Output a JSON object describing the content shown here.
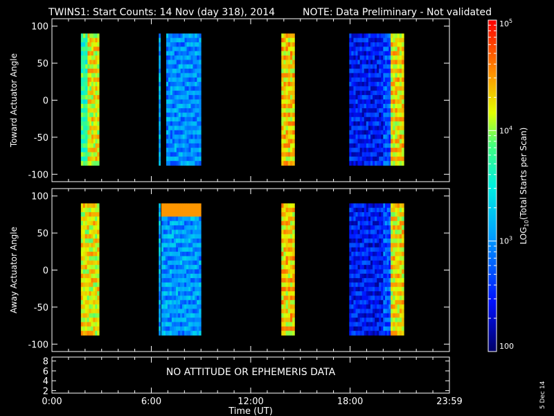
{
  "header": {
    "title": "TWINS1: Start Counts: 14 Nov (day 318), 2014",
    "note": "NOTE: Data Preliminary - Not validated",
    "note_color": "#ff2020"
  },
  "stamp": "5 Dec 14",
  "colors": {
    "axis": "#ffffff",
    "background": "#000000"
  },
  "chart_data": [
    {
      "type": "heatmap",
      "name": "toward",
      "ylabel": "Toward Actuator Angle",
      "ylim": [
        -110,
        110
      ],
      "yticks": [
        100,
        50,
        0,
        -50,
        -100
      ],
      "ytick_labels": [
        "100",
        "50",
        "0",
        "-50",
        "-100"
      ],
      "angle_range": [
        -88,
        90
      ],
      "x_range_hours": [
        0,
        24
      ],
      "scan_blocks": [
        {
          "start": 1.75,
          "end": 2.15,
          "log_level": 3.9,
          "note": "yellow-green"
        },
        {
          "start": 2.15,
          "end": 2.85,
          "log_level": 4.4,
          "note": "orange"
        },
        {
          "start": 6.45,
          "end": 6.55,
          "log_level": 3.3,
          "note": "cyan line"
        },
        {
          "start": 6.9,
          "end": 9.0,
          "log_level": 3.15,
          "note": "cyan"
        },
        {
          "start": 13.85,
          "end": 14.65,
          "log_level": 4.5,
          "note": "orange"
        },
        {
          "start": 17.95,
          "end": 20.0,
          "log_level": 2.65,
          "note": "blue"
        },
        {
          "start": 20.0,
          "end": 20.45,
          "log_level": 2.9,
          "note": "light blue"
        },
        {
          "start": 20.45,
          "end": 21.25,
          "log_level": 4.45,
          "note": "orange"
        }
      ]
    },
    {
      "type": "heatmap",
      "name": "away",
      "ylabel": "Away Actuator Angle",
      "ylim": [
        -110,
        110
      ],
      "yticks": [
        100,
        50,
        0,
        -50,
        -100
      ],
      "ytick_labels": [
        "100",
        "50",
        "0",
        "-50",
        "-100"
      ],
      "angle_range": [
        -88,
        90
      ],
      "x_range_hours": [
        0,
        24
      ],
      "scan_blocks": [
        {
          "start": 1.75,
          "end": 2.85,
          "log_level": 4.4,
          "note": "orange"
        },
        {
          "start": 6.45,
          "end": 6.55,
          "log_level": 3.3,
          "note": "cyan line"
        },
        {
          "start": 6.6,
          "end": 9.0,
          "log_level": 3.2,
          "note": "cyan, orange top band"
        },
        {
          "start": 13.85,
          "end": 14.65,
          "log_level": 4.5,
          "note": "orange"
        },
        {
          "start": 17.95,
          "end": 20.0,
          "log_level": 2.65,
          "note": "blue"
        },
        {
          "start": 20.0,
          "end": 20.45,
          "log_level": 2.9,
          "note": "light blue"
        },
        {
          "start": 20.45,
          "end": 21.25,
          "log_level": 4.45,
          "note": "orange"
        }
      ]
    },
    {
      "type": "line",
      "name": "ephemeris",
      "yticks": [
        8,
        6,
        4,
        2
      ],
      "ytick_labels": [
        "8",
        "6",
        "4",
        "2"
      ],
      "ylim": [
        1.5,
        8.8
      ],
      "message": "NO ATTITUDE OR EPHEMERIS DATA"
    }
  ],
  "xaxis": {
    "label": "Time (UT)",
    "range_hours": [
      0,
      24
    ],
    "ticks_hours": [
      0,
      6,
      12,
      18,
      24
    ],
    "tick_labels": [
      "0:00",
      "6:00",
      "12:00",
      "18:00",
      "23:59"
    ]
  },
  "colorbar": {
    "label": "LOG10(Total Starts per Scan)",
    "label_parts": [
      "LOG",
      "10",
      "(Total Starts per Scan)"
    ],
    "scale": "log",
    "range": [
      100,
      100000
    ],
    "ticks": [
      {
        "value": 100000,
        "label_base": "10",
        "label_exp": "5"
      },
      {
        "value": 10000,
        "label_base": "10",
        "label_exp": "4"
      },
      {
        "value": 1000,
        "label_base": "10",
        "label_exp": "3"
      },
      {
        "value": 100,
        "label_base": "100",
        "label_exp": ""
      }
    ]
  }
}
